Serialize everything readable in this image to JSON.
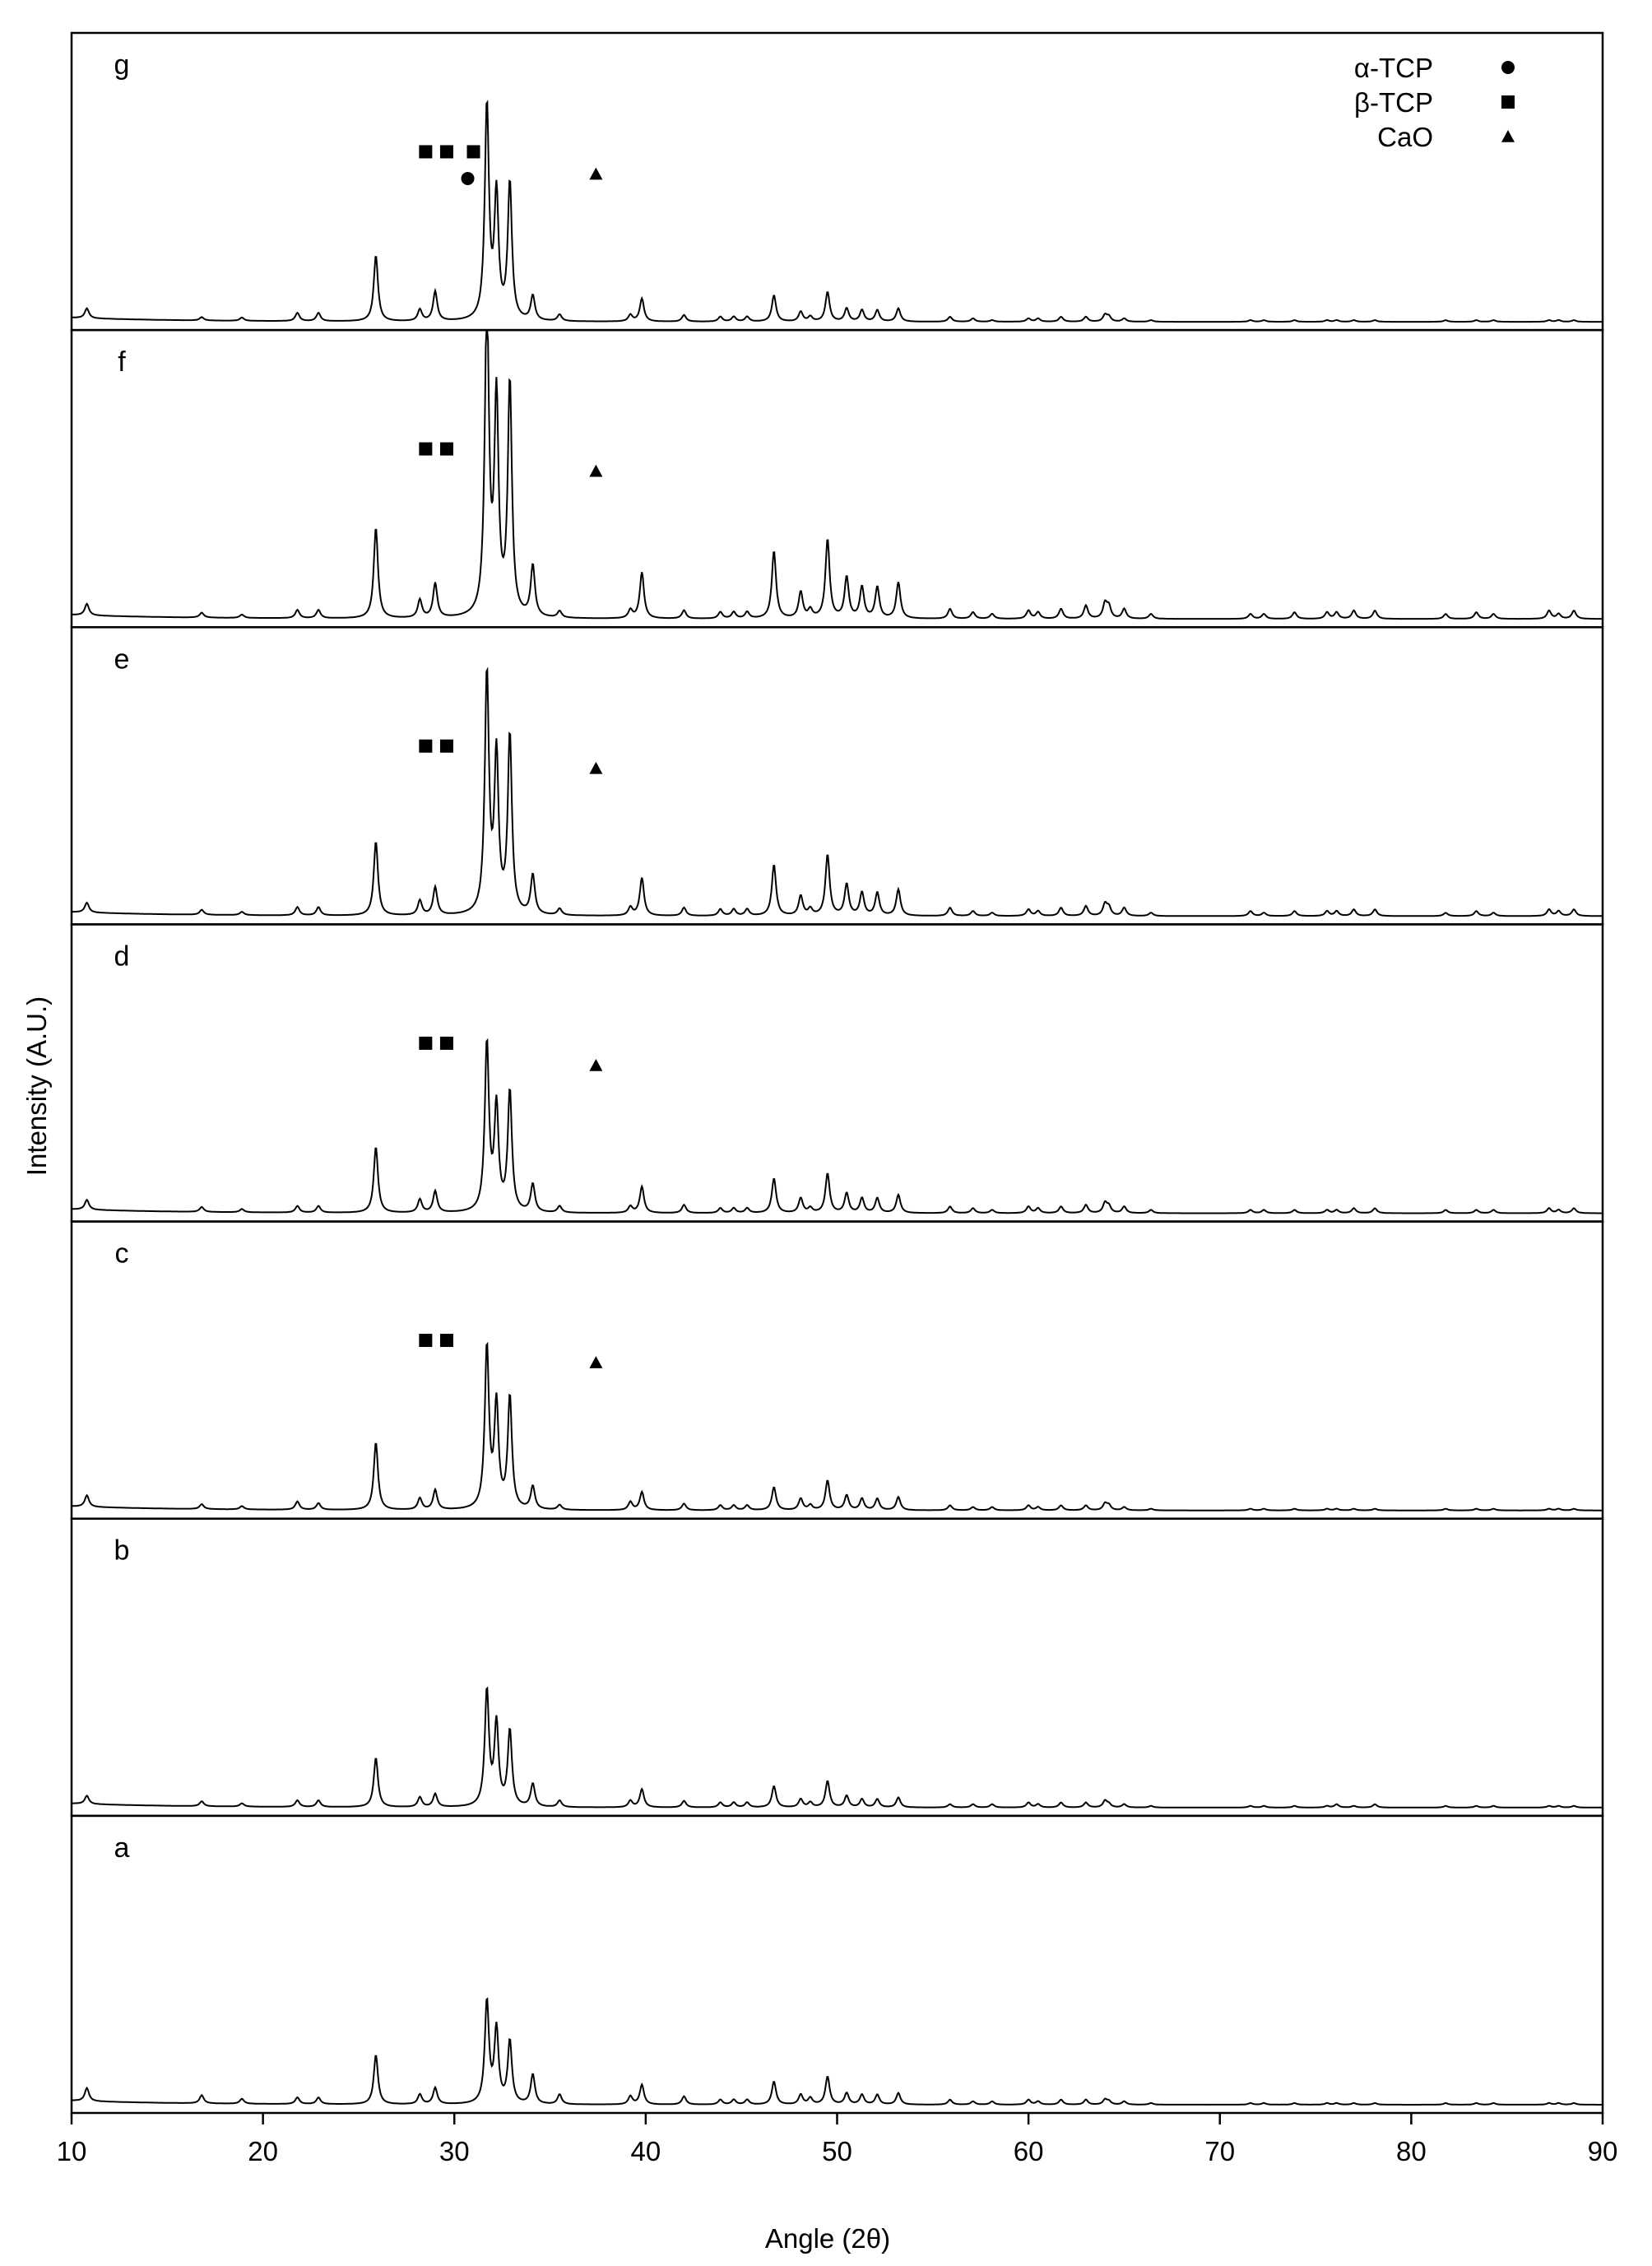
{
  "chart_data": {
    "type": "line",
    "title": "",
    "xlabel": "Angle (2θ)",
    "ylabel": "Intensity (A.U.)",
    "xlim": [
      10,
      90
    ],
    "xticks": [
      10,
      20,
      30,
      40,
      50,
      60,
      70,
      80,
      90
    ],
    "grid": false,
    "legend_position": "top-right",
    "legend": [
      {
        "label": "α-TCP",
        "marker": "circle"
      },
      {
        "label": "β-TCP",
        "marker": "square"
      },
      {
        "label": "CaO",
        "marker": "triangle"
      }
    ],
    "peaks_2theta": [
      10.8,
      16.8,
      18.9,
      21.8,
      22.9,
      25.9,
      28.2,
      29.0,
      31.7,
      32.2,
      32.9,
      34.1,
      35.5,
      39.2,
      39.8,
      42.0,
      43.9,
      44.6,
      45.3,
      46.7,
      48.1,
      48.6,
      49.5,
      50.5,
      51.3,
      52.1,
      53.2,
      55.9,
      57.1,
      58.1,
      60.0,
      60.5,
      61.7,
      63.0,
      64.0,
      64.2,
      65.0,
      66.4,
      71.6,
      72.3,
      73.9,
      75.6,
      76.1,
      77.0,
      78.1,
      81.8,
      83.4,
      84.3,
      87.2,
      87.7,
      88.5
    ],
    "series": [
      {
        "name": "a",
        "values": [
          0.08,
          0.05,
          0.03,
          0.04,
          0.04,
          0.3,
          0.06,
          0.1,
          0.62,
          0.45,
          0.38,
          0.18,
          0.06,
          0.05,
          0.12,
          0.05,
          0.03,
          0.03,
          0.03,
          0.14,
          0.06,
          0.04,
          0.17,
          0.07,
          0.06,
          0.06,
          0.07,
          0.03,
          0.02,
          0.02,
          0.03,
          0.02,
          0.03,
          0.03,
          0.03,
          0.02,
          0.02,
          0.01,
          0.01,
          0.01,
          0.01,
          0.01,
          0.01,
          0.01,
          0.01,
          0.01,
          0.01,
          0.01,
          0.01,
          0.01,
          0.01
        ]
      },
      {
        "name": "b",
        "values": [
          0.05,
          0.03,
          0.02,
          0.04,
          0.04,
          0.3,
          0.06,
          0.08,
          0.7,
          0.5,
          0.46,
          0.14,
          0.04,
          0.04,
          0.11,
          0.04,
          0.03,
          0.03,
          0.03,
          0.13,
          0.05,
          0.03,
          0.16,
          0.07,
          0.05,
          0.05,
          0.06,
          0.02,
          0.02,
          0.02,
          0.03,
          0.02,
          0.03,
          0.03,
          0.04,
          0.02,
          0.02,
          0.01,
          0.01,
          0.01,
          0.01,
          0.01,
          0.02,
          0.01,
          0.02,
          0.01,
          0.01,
          0.01,
          0.01,
          0.01,
          0.01
        ]
      },
      {
        "name": "c",
        "values": [
          0.07,
          0.03,
          0.02,
          0.05,
          0.04,
          0.41,
          0.07,
          0.12,
          0.98,
          0.63,
          0.68,
          0.14,
          0.03,
          0.05,
          0.11,
          0.04,
          0.03,
          0.03,
          0.03,
          0.14,
          0.07,
          0.03,
          0.18,
          0.09,
          0.07,
          0.07,
          0.08,
          0.03,
          0.02,
          0.02,
          0.03,
          0.02,
          0.03,
          0.03,
          0.04,
          0.03,
          0.02,
          0.01,
          0.01,
          0.01,
          0.01,
          0.01,
          0.01,
          0.01,
          0.01,
          0.01,
          0.01,
          0.01,
          0.01,
          0.01,
          0.01
        ]
      },
      {
        "name": "d",
        "values": [
          0.06,
          0.03,
          0.02,
          0.04,
          0.04,
          0.4,
          0.08,
          0.13,
          1.02,
          0.63,
          0.73,
          0.17,
          0.04,
          0.04,
          0.16,
          0.05,
          0.03,
          0.03,
          0.03,
          0.21,
          0.09,
          0.03,
          0.24,
          0.12,
          0.09,
          0.09,
          0.11,
          0.04,
          0.03,
          0.02,
          0.04,
          0.03,
          0.04,
          0.05,
          0.06,
          0.04,
          0.04,
          0.02,
          0.02,
          0.02,
          0.02,
          0.02,
          0.02,
          0.03,
          0.03,
          0.02,
          0.02,
          0.02,
          0.03,
          0.02,
          0.03
        ]
      },
      {
        "name": "e",
        "values": [
          0.06,
          0.03,
          0.02,
          0.05,
          0.05,
          0.45,
          0.09,
          0.17,
          1.45,
          0.95,
          1.08,
          0.24,
          0.04,
          0.05,
          0.23,
          0.05,
          0.04,
          0.04,
          0.04,
          0.31,
          0.12,
          0.04,
          0.37,
          0.19,
          0.14,
          0.14,
          0.16,
          0.05,
          0.03,
          0.02,
          0.04,
          0.03,
          0.05,
          0.06,
          0.07,
          0.05,
          0.05,
          0.02,
          0.03,
          0.02,
          0.03,
          0.03,
          0.03,
          0.04,
          0.04,
          0.02,
          0.03,
          0.02,
          0.04,
          0.03,
          0.04
        ]
      },
      {
        "name": "f",
        "values": [
          0.07,
          0.03,
          0.02,
          0.05,
          0.05,
          0.55,
          0.11,
          0.21,
          1.9,
          1.3,
          1.41,
          0.31,
          0.04,
          0.05,
          0.28,
          0.05,
          0.04,
          0.04,
          0.04,
          0.41,
          0.16,
          0.05,
          0.48,
          0.25,
          0.19,
          0.19,
          0.22,
          0.06,
          0.04,
          0.03,
          0.05,
          0.04,
          0.06,
          0.08,
          0.09,
          0.07,
          0.06,
          0.03,
          0.03,
          0.03,
          0.04,
          0.04,
          0.04,
          0.05,
          0.05,
          0.03,
          0.04,
          0.03,
          0.05,
          0.03,
          0.05
        ]
      },
      {
        "name": "g",
        "values": [
          0.06,
          0.02,
          0.02,
          0.05,
          0.05,
          0.4,
          0.07,
          0.18,
          1.3,
          0.75,
          0.83,
          0.15,
          0.04,
          0.04,
          0.14,
          0.04,
          0.03,
          0.03,
          0.03,
          0.16,
          0.06,
          0.03,
          0.18,
          0.08,
          0.07,
          0.07,
          0.08,
          0.03,
          0.02,
          0.01,
          0.02,
          0.02,
          0.03,
          0.03,
          0.04,
          0.03,
          0.02,
          0.01,
          0.01,
          0.01,
          0.01,
          0.01,
          0.01,
          0.01,
          0.01,
          0.01,
          0.01,
          0.01,
          0.01,
          0.01,
          0.01
        ]
      }
    ],
    "annotations": [
      {
        "panel": "g",
        "phase": "β-TCP",
        "marker": "square",
        "x": [
          28.5,
          29.6,
          31.0
        ]
      },
      {
        "panel": "g",
        "phase": "α-TCP",
        "marker": "circle",
        "x": [
          30.7
        ]
      },
      {
        "panel": "g",
        "phase": "CaO",
        "marker": "triangle",
        "x": [
          37.4
        ]
      },
      {
        "panel": "f",
        "phase": "β-TCP",
        "marker": "square",
        "x": [
          28.5,
          29.6
        ]
      },
      {
        "panel": "f",
        "phase": "CaO",
        "marker": "triangle",
        "x": [
          37.4
        ]
      },
      {
        "panel": "e",
        "phase": "β-TCP",
        "marker": "square",
        "x": [
          28.5,
          29.6
        ]
      },
      {
        "panel": "e",
        "phase": "CaO",
        "marker": "triangle",
        "x": [
          37.4
        ]
      },
      {
        "panel": "d",
        "phase": "β-TCP",
        "marker": "square",
        "x": [
          28.5,
          29.6
        ]
      },
      {
        "panel": "d",
        "phase": "CaO",
        "marker": "triangle",
        "x": [
          37.4
        ]
      },
      {
        "panel": "c",
        "phase": "β-TCP",
        "marker": "square",
        "x": [
          28.5,
          29.6
        ]
      },
      {
        "panel": "c",
        "phase": "CaO",
        "marker": "triangle",
        "x": [
          37.4
        ]
      }
    ]
  }
}
